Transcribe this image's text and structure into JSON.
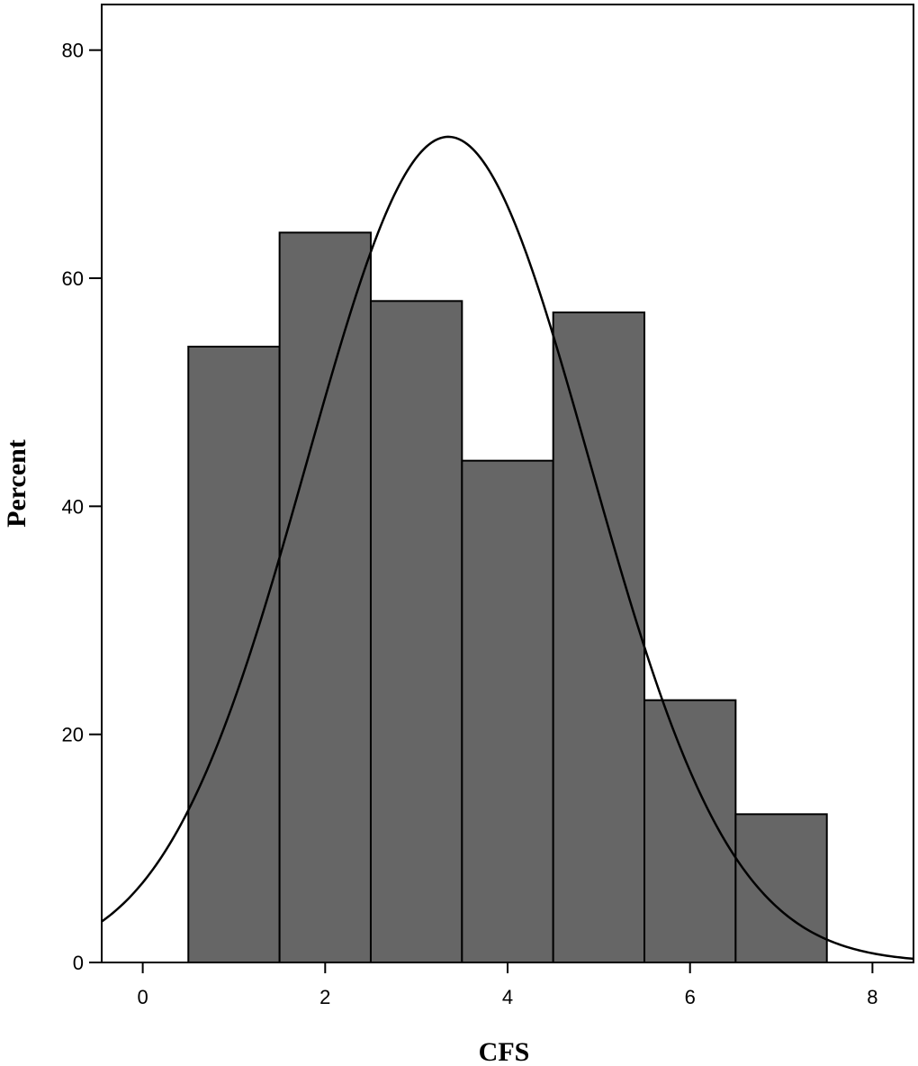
{
  "chart_data": {
    "type": "bar",
    "subtype": "histogram",
    "title": "",
    "xlabel": "CFS",
    "ylabel": "Percent",
    "xlim": [
      -0.45,
      8.45
    ],
    "ylim": [
      0,
      84
    ],
    "x_ticks": [
      0,
      2,
      4,
      6,
      8
    ],
    "y_ticks": [
      0,
      20,
      40,
      60,
      80
    ],
    "bins": [
      {
        "from": 0.5,
        "to": 1.5,
        "value": 54
      },
      {
        "from": 1.5,
        "to": 2.5,
        "value": 64
      },
      {
        "from": 2.5,
        "to": 3.5,
        "value": 58
      },
      {
        "from": 3.5,
        "to": 4.5,
        "value": 44
      },
      {
        "from": 4.5,
        "to": 5.5,
        "value": 57
      },
      {
        "from": 5.5,
        "to": 6.5,
        "value": 23
      },
      {
        "from": 6.5,
        "to": 7.5,
        "value": 13
      }
    ],
    "normal_curve": {
      "mean": 3.35,
      "sd": 1.55,
      "peak": 72.4
    },
    "bar_color": "#666666",
    "line_color": "#000000",
    "grid": false,
    "legend": "none"
  }
}
